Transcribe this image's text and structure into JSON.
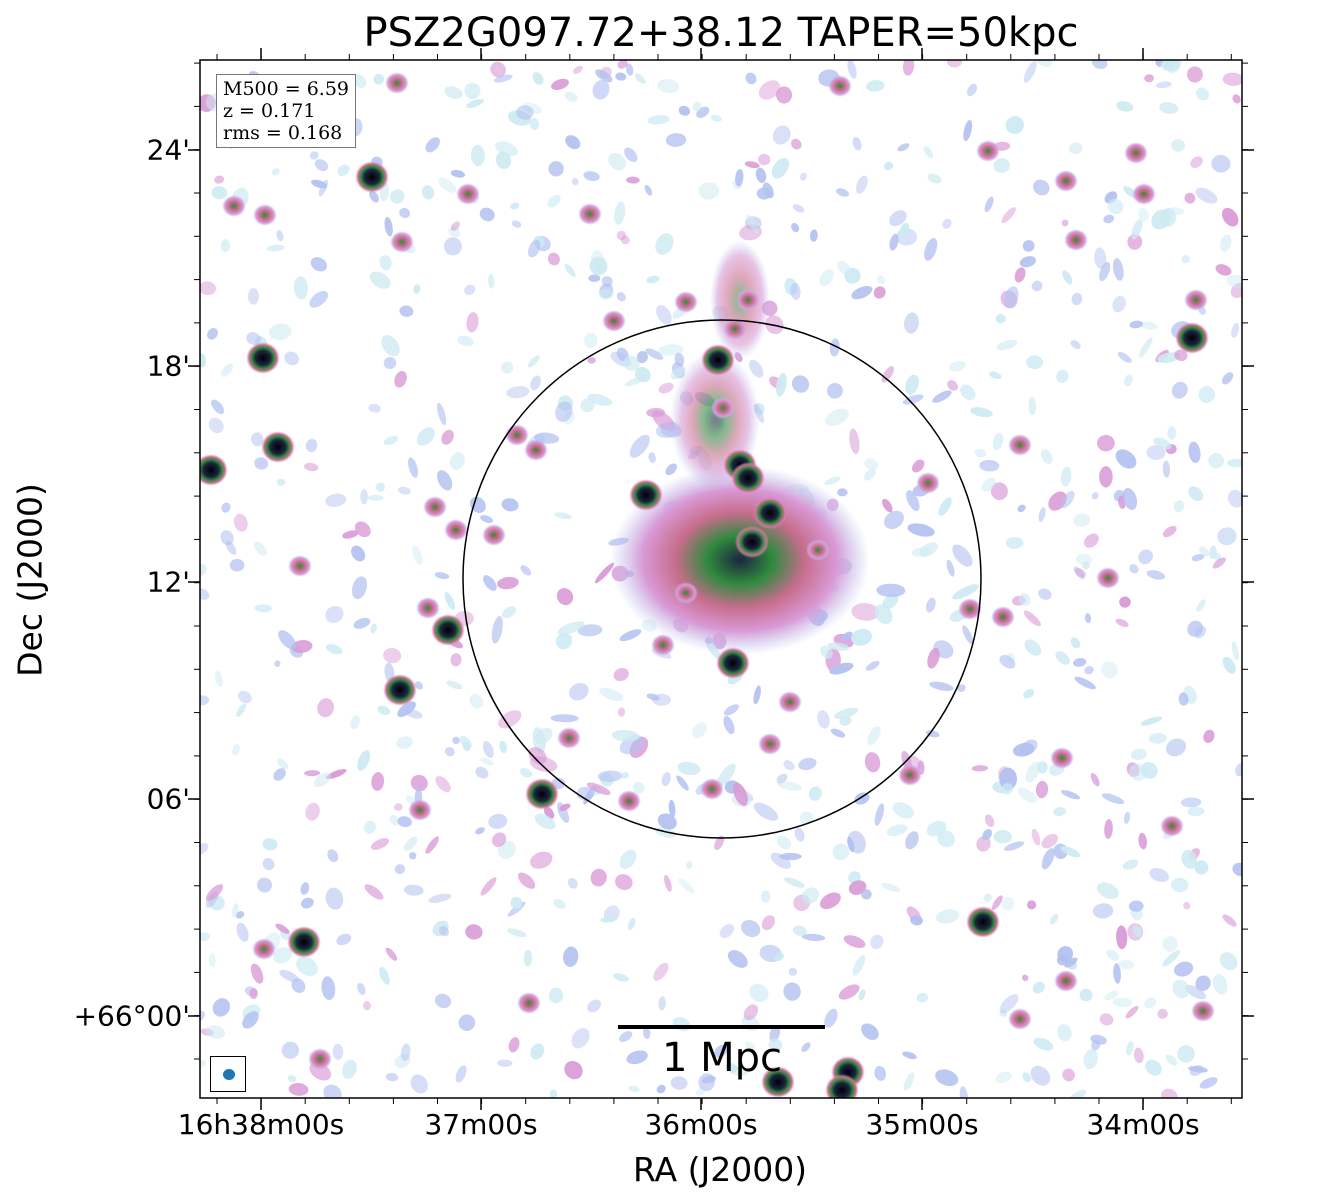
{
  "chart_data": {
    "type": "image",
    "title": "PSZ2G097.72+38.12 TAPER=50kpc",
    "xlabel": "RA (J2000)",
    "ylabel": "Dec (J2000)",
    "x_ticks": [
      "16h38m00s",
      "37m00s",
      "36m00s",
      "35m00s",
      "34m00s"
    ],
    "y_ticks": [
      "+66°00'",
      "06'",
      "12'",
      "18'",
      "24'"
    ],
    "info": {
      "m500": "M500 = 6.59",
      "z": "z = 0.171",
      "rms": "rms = 0.168"
    },
    "scalebar_label": "1 Mpc",
    "colormap": [
      "#ffffff",
      "#cdeaf2",
      "#b3c1f0",
      "#d99ad6",
      "#c76d8c",
      "#2f8a3d",
      "#1c2540",
      "#000000"
    ],
    "circle_color": "#000000",
    "beam_color": "#1f77b4"
  }
}
